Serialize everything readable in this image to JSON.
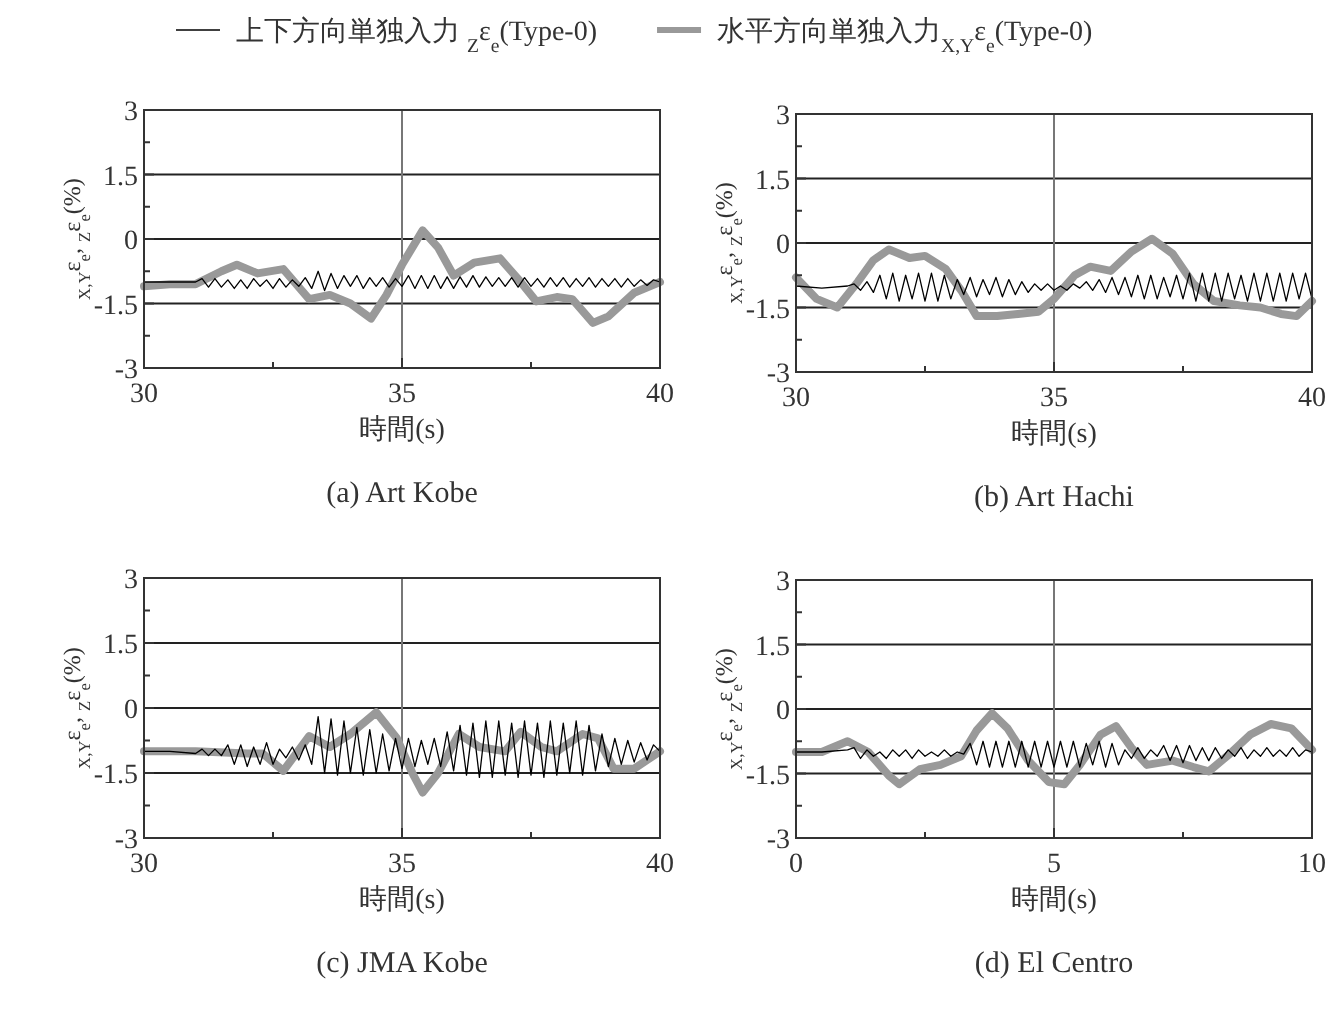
{
  "chart_data": [
    {
      "type": "line",
      "title": "(a)  Art Kobe",
      "xlabel": "時間(s)",
      "ylabel": "$_{X,Y}$ε$_{e}$, $_{Z}$ε$_{e}$(%)",
      "legend": "top",
      "grid": "y",
      "ref_lines": [
        {
          "axis": "x",
          "value": 35,
          "color": "#777777"
        }
      ],
      "xlim": [
        30,
        40
      ],
      "ylim": [
        -3,
        3
      ],
      "xticks": [
        30,
        {
          "value": 32.5,
          "label": null
        },
        35,
        {
          "value": 37.5,
          "label": null
        },
        40
      ],
      "yticks": [
        -3,
        {
          "value": -2.25,
          "label": null
        },
        -1.5,
        {
          "value": -0.75,
          "label": null
        },
        0,
        {
          "value": 0.75,
          "label": null
        },
        1.5,
        {
          "value": 2.25,
          "label": null
        },
        3
      ],
      "x": [
        30,
        30.5,
        31,
        31.125,
        31.25,
        31.375,
        31.5,
        31.625,
        31.75,
        31.875,
        32,
        32.125,
        32.25,
        32.375,
        32.5,
        32.625,
        32.75,
        32.875,
        33,
        33.125,
        33.25,
        33.375,
        33.5,
        33.625,
        33.75,
        33.875,
        34,
        34.125,
        34.25,
        34.375,
        34.5,
        34.625,
        34.75,
        34.875,
        35,
        35.125,
        35.25,
        35.375,
        35.5,
        35.625,
        35.75,
        35.875,
        36,
        36.125,
        36.25,
        36.375,
        36.5,
        36.625,
        36.75,
        36.875,
        37,
        37.125,
        37.25,
        37.375,
        37.5,
        37.625,
        37.75,
        37.875,
        38,
        38.125,
        38.25,
        38.375,
        38.5,
        38.625,
        38.75,
        38.875,
        39,
        39.125,
        39.25,
        39.375,
        39.5,
        39.625,
        39.75,
        39.875,
        40
      ],
      "series": [
        {
          "name": "上下方向単独入力 $_{Z}$ε$_{e}$(Type-0)",
          "color": "#000000",
          "values": [
            -1.0,
            -1.0,
            -1.0,
            -0.92,
            -1.12,
            -0.92,
            -1.12,
            -0.95,
            -1.15,
            -0.95,
            -1.15,
            -0.92,
            -1.1,
            -0.95,
            -1.15,
            -0.92,
            -1.12,
            -0.95,
            -1.1,
            -0.9,
            -1.15,
            -0.75,
            -1.2,
            -0.8,
            -1.15,
            -0.85,
            -1.1,
            -0.85,
            -1.15,
            -0.9,
            -1.1,
            -0.9,
            -1.12,
            -0.92,
            -1.1,
            -0.85,
            -1.15,
            -0.85,
            -1.15,
            -0.85,
            -1.15,
            -0.88,
            -1.15,
            -0.88,
            -1.12,
            -0.85,
            -1.12,
            -0.88,
            -1.1,
            -0.9,
            -1.1,
            -0.9,
            -1.12,
            -0.9,
            -1.1,
            -0.92,
            -1.12,
            -0.9,
            -1.1,
            -0.9,
            -1.12,
            -0.92,
            -1.1,
            -0.9,
            -1.12,
            -0.92,
            -1.1,
            -0.92,
            -1.12,
            -0.92,
            -1.1,
            -0.95,
            -1.08,
            -0.95,
            -1.0
          ]
        },
        {
          "name": "水平方向単独入力$_{X,Y}$ε$_{e}$(Type-0)",
          "color": "#999999",
          "x": [
            30,
            30.5,
            31,
            31.5,
            31.8,
            32.2,
            32.7,
            33.2,
            33.6,
            34.0,
            34.4,
            34.7,
            35.0,
            35.4,
            35.7,
            36.0,
            36.4,
            36.9,
            37.3,
            37.6,
            38.0,
            38.3,
            38.7,
            39.0,
            39.5,
            40
          ],
          "values": [
            -1.1,
            -1.05,
            -1.05,
            -0.75,
            -0.6,
            -0.8,
            -0.7,
            -1.4,
            -1.3,
            -1.5,
            -1.85,
            -1.3,
            -0.6,
            0.2,
            -0.2,
            -0.85,
            -0.55,
            -0.45,
            -1.0,
            -1.45,
            -1.35,
            -1.4,
            -1.95,
            -1.8,
            -1.25,
            -1.0
          ]
        }
      ]
    },
    {
      "type": "line",
      "title": "(b)  Art Hachi",
      "xlabel": "時間(s)",
      "ylabel": "$_{X,Y}$ε$_{e}$, $_{Z}$ε$_{e}$(%)",
      "grid": "y",
      "ref_lines": [
        {
          "axis": "x",
          "value": 35,
          "color": "#777777"
        }
      ],
      "xlim": [
        30,
        40
      ],
      "ylim": [
        -3,
        3
      ],
      "xticks": [
        30,
        {
          "value": 32.5,
          "label": null
        },
        35,
        {
          "value": 37.5,
          "label": null
        },
        40
      ],
      "yticks": [
        -3,
        {
          "value": -2.25,
          "label": null
        },
        -1.5,
        {
          "value": -0.75,
          "label": null
        },
        0,
        {
          "value": 0.75,
          "label": null
        },
        1.5,
        {
          "value": 2.25,
          "label": null
        },
        3
      ],
      "x": [
        30,
        30.5,
        31,
        31.125,
        31.25,
        31.375,
        31.5,
        31.625,
        31.75,
        31.875,
        32,
        32.125,
        32.25,
        32.375,
        32.5,
        32.625,
        32.75,
        32.875,
        33,
        33.125,
        33.25,
        33.375,
        33.5,
        33.625,
        33.75,
        33.875,
        34,
        34.125,
        34.25,
        34.375,
        34.5,
        34.625,
        34.75,
        34.875,
        35,
        35.125,
        35.25,
        35.375,
        35.5,
        35.625,
        35.75,
        35.875,
        36,
        36.125,
        36.25,
        36.375,
        36.5,
        36.625,
        36.75,
        36.875,
        37,
        37.125,
        37.25,
        37.375,
        37.5,
        37.625,
        37.75,
        37.875,
        38,
        38.125,
        38.25,
        38.375,
        38.5,
        38.625,
        38.75,
        38.875,
        39,
        39.125,
        39.25,
        39.375,
        39.5,
        39.625,
        39.75,
        39.875,
        40
      ],
      "series": [
        {
          "color": "#000000",
          "values": [
            -1.0,
            -1.05,
            -1.0,
            -0.95,
            -1.1,
            -0.9,
            -1.15,
            -0.75,
            -1.3,
            -0.7,
            -1.35,
            -0.75,
            -1.3,
            -0.7,
            -1.35,
            -0.7,
            -1.35,
            -0.75,
            -1.3,
            -0.85,
            -1.2,
            -0.8,
            -1.25,
            -0.85,
            -1.2,
            -0.8,
            -1.25,
            -0.85,
            -1.2,
            -0.9,
            -1.15,
            -0.95,
            -1.1,
            -0.95,
            -1.1,
            -1.0,
            -1.1,
            -0.95,
            -1.05,
            -0.9,
            -1.1,
            -0.85,
            -1.15,
            -0.8,
            -1.2,
            -0.8,
            -1.25,
            -0.75,
            -1.3,
            -0.75,
            -1.3,
            -0.8,
            -1.25,
            -0.75,
            -1.3,
            -0.7,
            -1.35,
            -0.7,
            -1.35,
            -0.7,
            -1.35,
            -0.7,
            -1.3,
            -0.75,
            -1.35,
            -0.7,
            -1.35,
            -0.7,
            -1.35,
            -0.7,
            -1.35,
            -0.7,
            -1.3,
            -0.7,
            -1.3
          ]
        },
        {
          "color": "#999999",
          "x": [
            30,
            30.4,
            30.8,
            31.2,
            31.5,
            31.8,
            32.2,
            32.5,
            32.9,
            33.2,
            33.5,
            33.9,
            34.3,
            34.7,
            35.0,
            35.4,
            35.7,
            36.1,
            36.5,
            36.9,
            37.3,
            37.7,
            38.1,
            38.6,
            39.0,
            39.4,
            39.7,
            40
          ],
          "values": [
            -0.8,
            -1.3,
            -1.5,
            -0.9,
            -0.4,
            -0.15,
            -0.35,
            -0.3,
            -0.6,
            -1.1,
            -1.7,
            -1.7,
            -1.65,
            -1.6,
            -1.3,
            -0.75,
            -0.55,
            -0.65,
            -0.2,
            0.1,
            -0.25,
            -0.95,
            -1.35,
            -1.45,
            -1.5,
            -1.65,
            -1.7,
            -1.35
          ]
        }
      ]
    },
    {
      "type": "line",
      "title": "(c)  JMA Kobe",
      "xlabel": "時間(s)",
      "ylabel": "$_{X,Y}$ε$_{e}$, $_{Z}$ε$_{e}$(%)",
      "grid": "y",
      "ref_lines": [
        {
          "axis": "x",
          "value": 35,
          "color": "#777777"
        }
      ],
      "xlim": [
        30,
        40
      ],
      "ylim": [
        -3,
        3
      ],
      "xticks": [
        30,
        {
          "value": 32.5,
          "label": null
        },
        35,
        {
          "value": 37.5,
          "label": null
        },
        40
      ],
      "yticks": [
        -3,
        {
          "value": -2.25,
          "label": null
        },
        -1.5,
        {
          "value": -0.75,
          "label": null
        },
        0,
        {
          "value": 0.75,
          "label": null
        },
        1.5,
        {
          "value": 2.25,
          "label": null
        },
        3
      ],
      "x": [
        30,
        30.5,
        31,
        31.125,
        31.25,
        31.375,
        31.5,
        31.625,
        31.75,
        31.875,
        32,
        32.125,
        32.25,
        32.375,
        32.5,
        32.625,
        32.75,
        32.875,
        33,
        33.125,
        33.25,
        33.375,
        33.5,
        33.625,
        33.75,
        33.875,
        34,
        34.125,
        34.25,
        34.375,
        34.5,
        34.625,
        34.75,
        34.875,
        35,
        35.125,
        35.25,
        35.375,
        35.5,
        35.625,
        35.75,
        35.875,
        36,
        36.125,
        36.25,
        36.375,
        36.5,
        36.625,
        36.75,
        36.875,
        37,
        37.125,
        37.25,
        37.375,
        37.5,
        37.625,
        37.75,
        37.875,
        38,
        38.125,
        38.25,
        38.375,
        38.5,
        38.625,
        38.75,
        38.875,
        39,
        39.125,
        39.25,
        39.375,
        39.5,
        39.625,
        39.75,
        39.875,
        40
      ],
      "series": [
        {
          "color": "#000000",
          "values": [
            -1.0,
            -1.0,
            -1.05,
            -0.95,
            -1.1,
            -0.95,
            -1.1,
            -0.85,
            -1.3,
            -0.85,
            -1.35,
            -0.9,
            -1.3,
            -0.8,
            -1.3,
            -0.95,
            -1.15,
            -0.9,
            -1.2,
            -0.85,
            -1.3,
            -0.2,
            -1.5,
            -0.25,
            -1.55,
            -0.3,
            -1.5,
            -0.45,
            -1.55,
            -0.5,
            -1.5,
            -0.6,
            -1.45,
            -0.7,
            -1.4,
            -0.7,
            -1.35,
            -0.75,
            -1.3,
            -0.7,
            -1.35,
            -0.55,
            -1.45,
            -0.4,
            -1.55,
            -0.35,
            -1.6,
            -0.3,
            -1.6,
            -0.3,
            -1.55,
            -0.35,
            -1.6,
            -0.3,
            -1.55,
            -0.35,
            -1.6,
            -0.3,
            -1.55,
            -0.35,
            -1.5,
            -0.3,
            -1.55,
            -0.4,
            -1.45,
            -0.6,
            -1.35,
            -0.7,
            -1.3,
            -0.75,
            -1.25,
            -0.8,
            -1.2,
            -0.85,
            -1.0
          ]
        },
        {
          "color": "#999999",
          "x": [
            30,
            31,
            32,
            32.3,
            32.7,
            33.2,
            33.6,
            34.0,
            34.5,
            34.9,
            35.2,
            35.4,
            35.7,
            36.1,
            36.5,
            37.0,
            37.3,
            37.7,
            38.0,
            38.5,
            38.8,
            39.1,
            39.5,
            40
          ],
          "values": [
            -1.0,
            -1.0,
            -1.05,
            -1.05,
            -1.45,
            -0.65,
            -0.9,
            -0.6,
            -0.1,
            -0.7,
            -1.5,
            -1.95,
            -1.5,
            -0.6,
            -0.9,
            -1.0,
            -0.55,
            -0.9,
            -1.0,
            -0.6,
            -0.7,
            -1.4,
            -1.4,
            -1.0
          ]
        }
      ]
    },
    {
      "type": "line",
      "title": "(d)  El Centro",
      "xlabel": "時間(s)",
      "ylabel": "$_{X,Y}$ε$_{e}$, $_{Z}$ε$_{e}$(%)",
      "grid": "y",
      "ref_lines": [
        {
          "axis": "x",
          "value": 5,
          "color": "#777777"
        }
      ],
      "xlim": [
        0,
        10
      ],
      "ylim": [
        -3,
        3
      ],
      "xticks": [
        0,
        {
          "value": 2.5,
          "label": null
        },
        5,
        {
          "value": 7.5,
          "label": null
        },
        10
      ],
      "yticks": [
        -3,
        {
          "value": -2.25,
          "label": null
        },
        -1.5,
        {
          "value": -0.75,
          "label": null
        },
        0,
        {
          "value": 0.75,
          "label": null
        },
        1.5,
        {
          "value": 2.25,
          "label": null
        },
        3
      ],
      "x": [
        0,
        0.5,
        1,
        1.125,
        1.25,
        1.375,
        1.5,
        1.625,
        1.75,
        1.875,
        2,
        2.125,
        2.25,
        2.375,
        2.5,
        2.625,
        2.75,
        2.875,
        3,
        3.125,
        3.25,
        3.375,
        3.5,
        3.625,
        3.75,
        3.875,
        4,
        4.125,
        4.25,
        4.375,
        4.5,
        4.625,
        4.75,
        4.875,
        5,
        5.125,
        5.25,
        5.375,
        5.5,
        5.625,
        5.75,
        5.875,
        6,
        6.125,
        6.25,
        6.375,
        6.5,
        6.625,
        6.75,
        6.875,
        7,
        7.125,
        7.25,
        7.375,
        7.5,
        7.625,
        7.75,
        7.875,
        8,
        8.125,
        8.25,
        8.375,
        8.5,
        8.625,
        8.75,
        8.875,
        9,
        9.125,
        9.25,
        9.375,
        9.5,
        9.625,
        9.75,
        9.875,
        10
      ],
      "series": [
        {
          "color": "#000000",
          "values": [
            -1.0,
            -1.0,
            -0.95,
            -0.9,
            -1.15,
            -0.95,
            -1.1,
            -1.0,
            -1.15,
            -0.95,
            -1.1,
            -0.95,
            -1.15,
            -0.95,
            -1.1,
            -1.0,
            -1.1,
            -0.95,
            -1.1,
            -1.0,
            -1.05,
            -0.8,
            -1.3,
            -0.75,
            -1.35,
            -0.75,
            -1.35,
            -0.75,
            -1.35,
            -0.75,
            -1.35,
            -0.75,
            -1.35,
            -0.75,
            -1.35,
            -0.75,
            -1.35,
            -0.75,
            -1.35,
            -0.8,
            -1.3,
            -0.75,
            -1.35,
            -0.8,
            -1.3,
            -0.95,
            -1.15,
            -0.9,
            -1.15,
            -0.95,
            -1.1,
            -0.85,
            -1.2,
            -0.85,
            -1.25,
            -0.85,
            -1.2,
            -0.9,
            -1.2,
            -0.9,
            -1.15,
            -0.95,
            -1.1,
            -0.9,
            -1.15,
            -0.95,
            -1.1,
            -0.9,
            -1.1,
            -0.95,
            -1.1,
            -0.9,
            -1.1,
            -0.95,
            -1.0
          ]
        },
        {
          "color": "#999999",
          "x": [
            0,
            0.5,
            1.0,
            1.4,
            1.8,
            2.0,
            2.4,
            2.8,
            3.2,
            3.5,
            3.8,
            4.1,
            4.5,
            4.9,
            5.2,
            5.5,
            5.9,
            6.2,
            6.5,
            6.8,
            7.3,
            7.7,
            8.0,
            8.4,
            8.8,
            9.2,
            9.6,
            10
          ],
          "values": [
            -1.0,
            -1.0,
            -0.75,
            -1.0,
            -1.55,
            -1.75,
            -1.4,
            -1.3,
            -1.1,
            -0.5,
            -0.1,
            -0.45,
            -1.2,
            -1.7,
            -1.75,
            -1.3,
            -0.6,
            -0.4,
            -0.9,
            -1.3,
            -1.2,
            -1.35,
            -1.45,
            -1.05,
            -0.6,
            -0.35,
            -0.45,
            -0.95
          ]
        }
      ]
    }
  ]
}
